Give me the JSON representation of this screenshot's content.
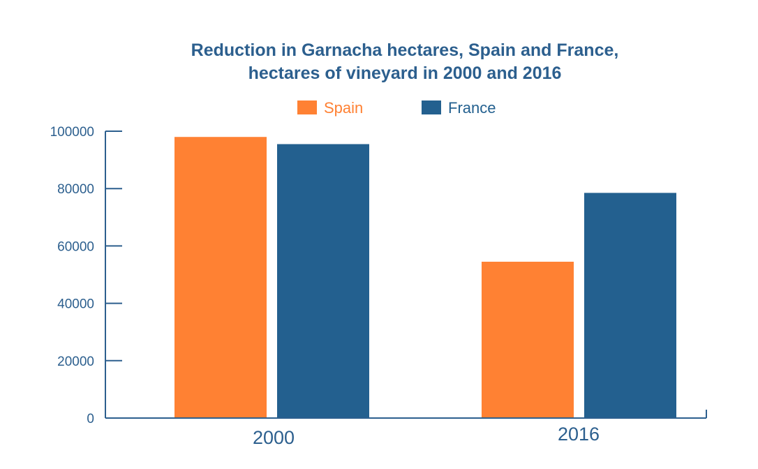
{
  "chart_data": {
    "type": "bar",
    "title_lines": [
      "Reduction in Garnacha hectares, Spain and France,",
      "hectares of vineyard in 2000 and 2016"
    ],
    "categories": [
      "2000",
      "2016"
    ],
    "series": [
      {
        "name": "Spain",
        "values": [
          98000,
          54500
        ],
        "color": "#ff8133"
      },
      {
        "name": "France",
        "values": [
          95500,
          78500
        ],
        "color": "#23608f"
      }
    ],
    "ylim": [
      0,
      100000
    ],
    "yticks": [
      0,
      20000,
      40000,
      60000,
      80000,
      100000
    ],
    "ytick_labels": [
      "0",
      "20000",
      "40000",
      "60000",
      "80000",
      "100000"
    ],
    "xlabel": "",
    "ylabel": "",
    "grid": false,
    "legend_position": "top-center",
    "text_color": "#2c5f8e"
  }
}
